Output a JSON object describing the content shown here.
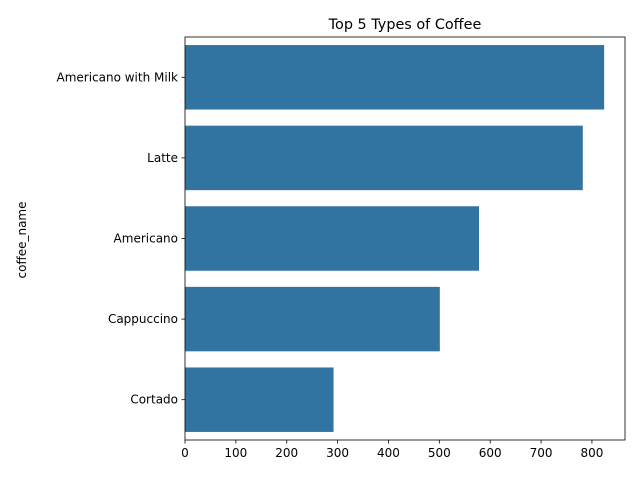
{
  "chart_data": {
    "type": "bar",
    "orientation": "horizontal",
    "title": "Top 5 Types of Coffee",
    "xlabel": "",
    "ylabel": "coffee_name",
    "categories": [
      "Americano with Milk",
      "Latte",
      "Americano",
      "Cappuccino",
      "Cortado"
    ],
    "values": [
      824,
      782,
      578,
      501,
      292
    ],
    "xlim": [
      0,
      865
    ],
    "xticks": [
      0,
      100,
      200,
      300,
      400,
      500,
      600,
      700,
      800
    ],
    "grid": false,
    "legend": "none",
    "bar_color": "#3274a1"
  }
}
